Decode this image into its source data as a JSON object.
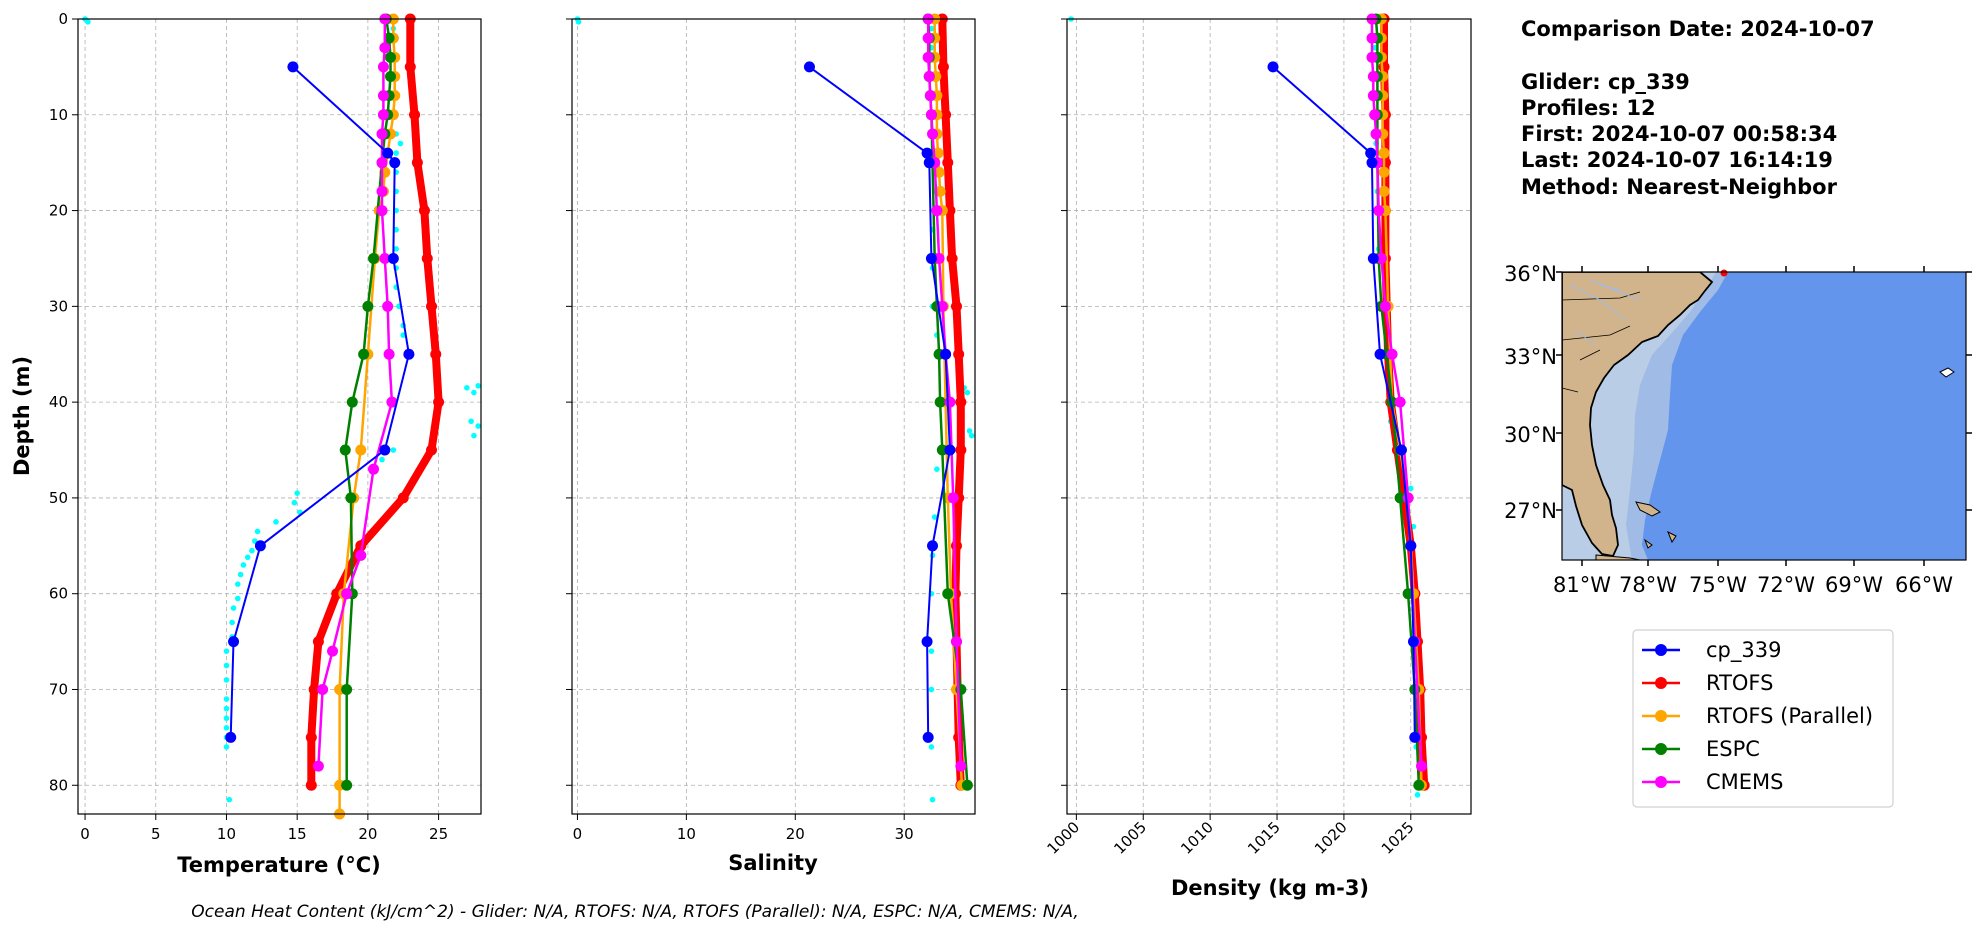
{
  "chart_data": [
    {
      "type": "line",
      "xlabel": "Temperature (°C)",
      "ylabel": "Depth (m)",
      "xlim": [
        -0.5,
        28
      ],
      "ylim": [
        83,
        0
      ],
      "x_ticks": [
        0,
        5,
        10,
        15,
        20,
        25
      ],
      "y_ticks": [
        0,
        10,
        20,
        30,
        40,
        50,
        60,
        70,
        80
      ],
      "grid": true,
      "raw_glider": [
        [
          0,
          0
        ],
        [
          0.2,
          0.3
        ],
        [
          21.8,
          1
        ],
        [
          22,
          2
        ],
        [
          21.5,
          4
        ],
        [
          22,
          6
        ],
        [
          21.8,
          8
        ],
        [
          22,
          10
        ],
        [
          22,
          12
        ],
        [
          22.3,
          13
        ],
        [
          22,
          14
        ],
        [
          22,
          16
        ],
        [
          22,
          18
        ],
        [
          22,
          20
        ],
        [
          22,
          22
        ],
        [
          22,
          24
        ],
        [
          22,
          26
        ],
        [
          22,
          28
        ],
        [
          22.2,
          30
        ],
        [
          22.5,
          32
        ],
        [
          22.5,
          33
        ],
        [
          27,
          38.5
        ],
        [
          27.5,
          39
        ],
        [
          27.8,
          38.3
        ],
        [
          27.3,
          42
        ],
        [
          27.8,
          42.5
        ],
        [
          27.5,
          43.5
        ],
        [
          21.8,
          45
        ],
        [
          21,
          46
        ],
        [
          15,
          49.5
        ],
        [
          14.8,
          50.5
        ],
        [
          15.2,
          51.5
        ],
        [
          13.5,
          52.5
        ],
        [
          12.2,
          53.5
        ],
        [
          12,
          54.5
        ],
        [
          11.8,
          55.5
        ],
        [
          11.5,
          56.2
        ],
        [
          11.2,
          57
        ],
        [
          11,
          58
        ],
        [
          10.8,
          59
        ],
        [
          10.8,
          60.5
        ],
        [
          10.5,
          61.5
        ],
        [
          10.4,
          63
        ],
        [
          10.4,
          64.5
        ],
        [
          10,
          66
        ],
        [
          10,
          67.5
        ],
        [
          10,
          69
        ],
        [
          10,
          71
        ],
        [
          10,
          72
        ],
        [
          10,
          73
        ],
        [
          10,
          74
        ],
        [
          10,
          75
        ],
        [
          10,
          76
        ],
        [
          10.2,
          81.5
        ]
      ],
      "series": [
        {
          "name": "cp_339",
          "color": "#0000ff",
          "x": [
            14.7,
            21.4,
            21.9,
            21.8,
            22.9,
            21.2,
            12.4,
            10.5,
            10.3
          ],
          "y": [
            5,
            14,
            15,
            25,
            35,
            45,
            55,
            65,
            75
          ]
        },
        {
          "name": "RTOFS",
          "color": "#ff0000",
          "x": [
            23,
            23,
            23.3,
            23.5,
            24,
            24.2,
            24.5,
            24.8,
            25,
            24.5,
            22.5,
            19.5,
            17.8,
            16.5,
            16.2,
            16,
            16
          ],
          "y": [
            0,
            5,
            10,
            15,
            20,
            25,
            30,
            35,
            40,
            45,
            50,
            55,
            60,
            65,
            70,
            75,
            80
          ]
        },
        {
          "name": "RTOFS (Parallel)",
          "color": "#ffa500",
          "x": [
            21.8,
            21.8,
            21.9,
            21.9,
            21.9,
            21.8,
            21.6,
            21.4,
            21.2,
            21.1,
            20.8,
            20.5,
            20,
            19.5,
            19,
            18.3,
            18,
            18,
            18
          ],
          "y": [
            0,
            2,
            4,
            6,
            8,
            10,
            12,
            14,
            16,
            18,
            20,
            25,
            35,
            45,
            50,
            60,
            70,
            80,
            83
          ]
        },
        {
          "name": "ESPC",
          "color": "#008000",
          "x": [
            21.3,
            21.5,
            21.6,
            21.6,
            21.5,
            21.4,
            21.2,
            21,
            20.4,
            20,
            19.7,
            18.9,
            18.4,
            18.8,
            18.9,
            18.5,
            18.5
          ],
          "y": [
            0,
            2,
            4,
            6,
            8,
            10,
            12,
            15,
            25,
            30,
            35,
            40,
            45,
            50,
            60,
            70,
            80
          ]
        },
        {
          "name": "CMEMS",
          "color": "#ff00ff",
          "x": [
            21.2,
            21.2,
            21.1,
            21.1,
            21.1,
            21,
            21,
            21,
            21,
            21.2,
            21.4,
            21.5,
            21.7,
            20.4,
            19.5,
            18.5,
            17.5,
            16.8,
            16.5
          ],
          "y": [
            0,
            3,
            5,
            8,
            10,
            12,
            15,
            18,
            20,
            25,
            30,
            35,
            40,
            47,
            56,
            60,
            66,
            70,
            78
          ]
        }
      ]
    },
    {
      "type": "line",
      "xlabel": "Salinity",
      "ylabel": "",
      "xlim": [
        -0.5,
        36.5
      ],
      "ylim": [
        83,
        0
      ],
      "x_ticks": [
        0,
        10,
        20,
        30
      ],
      "y_ticks": [
        0,
        10,
        20,
        30,
        40,
        50,
        60,
        70,
        80
      ],
      "grid": true,
      "raw_glider": [
        [
          0,
          0
        ],
        [
          0.1,
          0.3
        ],
        [
          32.5,
          1
        ],
        [
          32.5,
          3
        ],
        [
          32.5,
          6
        ],
        [
          32.5,
          10
        ],
        [
          32.8,
          14
        ],
        [
          32.8,
          18
        ],
        [
          32.6,
          22
        ],
        [
          32.6,
          26
        ],
        [
          32.6,
          30
        ],
        [
          33,
          33
        ],
        [
          35.5,
          38.5
        ],
        [
          35.8,
          39
        ],
        [
          36,
          43
        ],
        [
          36.2,
          43.5
        ],
        [
          35,
          45
        ],
        [
          33,
          47
        ],
        [
          32.8,
          52
        ],
        [
          32.6,
          56
        ],
        [
          32.5,
          60
        ],
        [
          32.5,
          66
        ],
        [
          32.5,
          70
        ],
        [
          32.5,
          76
        ],
        [
          32.6,
          81.5
        ]
      ],
      "series": [
        {
          "name": "cp_339",
          "color": "#0000ff",
          "x": [
            21.3,
            32.1,
            32.3,
            32.5,
            33.8,
            34.2,
            32.6,
            32.1,
            32.2
          ],
          "y": [
            5,
            14,
            15,
            25,
            35,
            45,
            55,
            65,
            75
          ]
        },
        {
          "name": "RTOFS",
          "color": "#ff0000",
          "x": [
            33.5,
            33.6,
            33.8,
            34,
            34.2,
            34.4,
            34.8,
            35,
            35.2,
            35.2,
            35,
            34.8,
            34.7,
            34.8,
            34.9,
            35,
            35.2
          ],
          "y": [
            0,
            5,
            10,
            15,
            20,
            25,
            30,
            35,
            40,
            45,
            50,
            55,
            60,
            65,
            70,
            75,
            80
          ]
        },
        {
          "name": "RTOFS (Parallel)",
          "color": "#ffa500",
          "x": [
            32.8,
            32.8,
            32.8,
            32.9,
            33,
            33,
            33,
            33.1,
            33.2,
            33.3,
            33.5,
            33.6,
            33.8,
            34,
            34.3,
            34.8,
            35.3
          ],
          "y": [
            0,
            2,
            4,
            6,
            8,
            10,
            12,
            14,
            16,
            18,
            20,
            30,
            40,
            50,
            60,
            70,
            80
          ]
        },
        {
          "name": "ESPC",
          "color": "#008000",
          "x": [
            32.2,
            32.3,
            32.3,
            32.3,
            32.4,
            32.5,
            32.6,
            32.8,
            33,
            33.2,
            33.3,
            33.5,
            34,
            35.2,
            35.8
          ],
          "y": [
            0,
            2,
            4,
            6,
            8,
            10,
            15,
            25,
            30,
            35,
            40,
            45,
            60,
            70,
            80
          ]
        },
        {
          "name": "CMEMS",
          "color": "#ff00ff",
          "x": [
            32.2,
            32.2,
            32.2,
            32.3,
            32.4,
            32.5,
            32.6,
            32.8,
            33,
            33.2,
            33.5,
            33.8,
            34.2,
            34.5,
            34.8,
            35.2
          ],
          "y": [
            0,
            2,
            4,
            6,
            8,
            10,
            12,
            15,
            20,
            25,
            30,
            35,
            40,
            50,
            65,
            78
          ]
        }
      ]
    },
    {
      "type": "line",
      "xlabel": "Density (kg m-3)",
      "ylabel": "",
      "xlim": [
        999.3,
        1029.5
      ],
      "ylim": [
        83,
        0
      ],
      "x_ticks": [
        1000,
        1005,
        1010,
        1015,
        1020,
        1025
      ],
      "y_ticks": [
        0,
        10,
        20,
        30,
        40,
        50,
        60,
        70,
        80
      ],
      "grid": true,
      "raw_glider": [
        [
          999.6,
          0
        ],
        [
          1022.3,
          3
        ],
        [
          1022.4,
          8
        ],
        [
          1022.4,
          13
        ],
        [
          1022.5,
          18
        ],
        [
          1022.6,
          24
        ],
        [
          1022.7,
          30
        ],
        [
          1023,
          35
        ],
        [
          1023.3,
          38
        ],
        [
          1023.5,
          42
        ],
        [
          1024.5,
          45
        ],
        [
          1025,
          49
        ],
        [
          1025.2,
          53
        ],
        [
          1025.2,
          58
        ],
        [
          1025.3,
          64
        ],
        [
          1025.3,
          70
        ],
        [
          1025.4,
          76
        ],
        [
          1025.5,
          81
        ]
      ],
      "series": [
        {
          "name": "cp_339",
          "color": "#0000ff",
          "x": [
            1014.7,
            1022,
            1022.1,
            1022.2,
            1022.7,
            1024.3,
            1025,
            1025.2,
            1025.3
          ],
          "y": [
            5,
            14,
            15,
            25,
            35,
            45,
            55,
            65,
            75
          ]
        },
        {
          "name": "RTOFS",
          "color": "#ff0000",
          "x": [
            1023,
            1023,
            1023.1,
            1023.1,
            1023.1,
            1023.1,
            1023.2,
            1023.3,
            1023.5,
            1024,
            1024.5,
            1025,
            1025.3,
            1025.5,
            1025.7,
            1025.8,
            1026
          ],
          "y": [
            0,
            5,
            10,
            15,
            20,
            25,
            30,
            35,
            40,
            45,
            50,
            55,
            60,
            65,
            70,
            75,
            80
          ]
        },
        {
          "name": "RTOFS (Parallel)",
          "color": "#ffa500",
          "x": [
            1022.8,
            1022.8,
            1022.8,
            1022.9,
            1022.9,
            1022.9,
            1022.9,
            1023,
            1023,
            1023,
            1023.1,
            1023.3,
            1023.6,
            1024.2,
            1024.8,
            1025.2,
            1025.6,
            1025.8
          ],
          "y": [
            0,
            2,
            4,
            6,
            8,
            10,
            12,
            14,
            16,
            18,
            20,
            30,
            40,
            45,
            50,
            60,
            70,
            80
          ]
        },
        {
          "name": "ESPC",
          "color": "#008000",
          "x": [
            1022.4,
            1022.5,
            1022.5,
            1022.5,
            1022.5,
            1022.5,
            1022.5,
            1022.6,
            1022.8,
            1023.2,
            1023.6,
            1024.2,
            1024.8,
            1025.3,
            1025.6
          ],
          "y": [
            0,
            2,
            4,
            6,
            8,
            10,
            15,
            25,
            30,
            35,
            40,
            50,
            60,
            70,
            80
          ]
        },
        {
          "name": "CMEMS",
          "color": "#ff00ff",
          "x": [
            1022.1,
            1022.1,
            1022.1,
            1022.2,
            1022.2,
            1022.3,
            1022.4,
            1022.5,
            1022.6,
            1022.8,
            1023.1,
            1023.6,
            1024.2,
            1024.8,
            1025.3,
            1025.8
          ],
          "y": [
            0,
            2,
            4,
            6,
            8,
            10,
            12,
            15,
            20,
            25,
            30,
            35,
            40,
            50,
            65,
            78
          ]
        }
      ]
    }
  ],
  "info": {
    "comparison_date": "Comparison Date: 2024-10-07",
    "glider": "Glider: cp_339",
    "profiles": "Profiles: 12",
    "first": "First: 2024-10-07 00:58:34",
    "last": "Last: 2024-10-07 16:14:19",
    "method": "Method: Nearest-Neighbor"
  },
  "map": {
    "lat_ticks": [
      "36°N",
      "33°N",
      "30°N",
      "27°N"
    ],
    "lon_ticks": [
      "81°W",
      "78°W",
      "75°W",
      "72°W",
      "69°W",
      "66°W"
    ],
    "colors": {
      "land": "#d2b48c",
      "shelf": "#b9cde6",
      "slope": "#9fbbe6",
      "ocean": "#6495ed"
    }
  },
  "legend": {
    "entries": [
      {
        "label": "cp_339",
        "color": "#0000ff"
      },
      {
        "label": "RTOFS",
        "color": "#ff0000"
      },
      {
        "label": "RTOFS (Parallel)",
        "color": "#ffa500"
      },
      {
        "label": "ESPC",
        "color": "#008000"
      },
      {
        "label": "CMEMS",
        "color": "#ff00ff"
      }
    ]
  },
  "footer": {
    "ohc": "Ocean Heat Content (kJ/cm^2) - Glider: N/A,  RTOFS: N/A,  RTOFS (Parallel): N/A,  ESPC: N/A,  CMEMS: N/A,"
  }
}
